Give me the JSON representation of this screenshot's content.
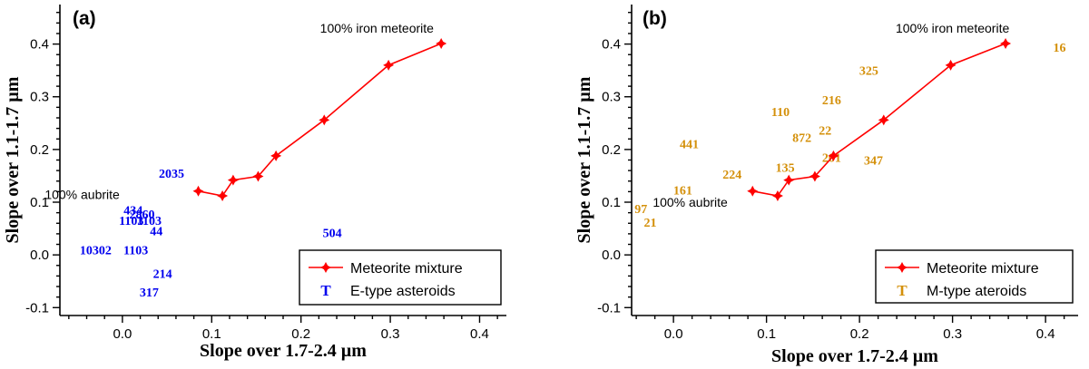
{
  "chart_data": [
    {
      "type": "scatter",
      "panel_label": "(a)",
      "xlabel": "Slope over 1.7-2.4 µm",
      "ylabel": "Slope over 1.1-1.7 µm",
      "xlim": [
        -0.07,
        0.43
      ],
      "ylim": [
        -0.115,
        0.475
      ],
      "xticks": [
        0.0,
        0.1,
        0.2,
        0.3,
        0.4
      ],
      "xtick_labels": [
        "0.0",
        "0.1",
        "0.2",
        "0.3",
        "0.4"
      ],
      "yticks": [
        -0.1,
        0.0,
        0.1,
        0.2,
        0.3,
        0.4
      ],
      "ytick_labels": [
        "-0.1",
        "0.0",
        "0.1",
        "0.2",
        "0.3",
        "0.4"
      ],
      "mixture": {
        "name": "Meteorite mixture",
        "color": "#ff0000",
        "x": [
          0.085,
          0.112,
          0.124,
          0.152,
          0.172,
          0.226,
          0.298,
          0.357
        ],
        "y": [
          0.121,
          0.112,
          0.142,
          0.149,
          0.188,
          0.256,
          0.36,
          0.401
        ]
      },
      "endmember_labels": [
        {
          "text": "100% iron meteorite",
          "x": 0.285,
          "y": 0.43
        },
        {
          "text": "100% aubrite",
          "x": -0.045,
          "y": 0.115
        }
      ],
      "asteroids": {
        "name": "E-type asteroids",
        "color": "#0000ee",
        "marker": "T",
        "points": [
          {
            "label": "2035",
            "x": 0.055,
            "y": 0.155
          },
          {
            "label": "434",
            "x": 0.012,
            "y": 0.085
          },
          {
            "label": "2860",
            "x": 0.022,
            "y": 0.078
          },
          {
            "label": "1103",
            "x": 0.03,
            "y": 0.066
          },
          {
            "label": "1103",
            "x": 0.01,
            "y": 0.066
          },
          {
            "label": "44",
            "x": 0.038,
            "y": 0.046
          },
          {
            "label": "10302",
            "x": -0.03,
            "y": 0.01
          },
          {
            "label": "1103",
            "x": 0.015,
            "y": 0.01
          },
          {
            "label": "504",
            "x": 0.235,
            "y": 0.042
          },
          {
            "label": "214",
            "x": 0.045,
            "y": -0.035
          },
          {
            "label": "317",
            "x": 0.03,
            "y": -0.07
          }
        ]
      },
      "legend": {
        "position": "bottom-right",
        "entries": [
          "Meteorite mixture",
          "E-type asteroids"
        ]
      }
    },
    {
      "type": "scatter",
      "panel_label": "(b)",
      "xlabel": "Slope over 1.7-2.4 µm",
      "ylabel": "Slope over 1.1-1.7 µm",
      "xlim": [
        -0.045,
        0.435
      ],
      "ylim": [
        -0.115,
        0.475
      ],
      "xticks": [
        0.0,
        0.1,
        0.2,
        0.3,
        0.4
      ],
      "xtick_labels": [
        "0.0",
        "0.1",
        "0.2",
        "0.3",
        "0.4"
      ],
      "yticks": [
        -0.1,
        0.0,
        0.1,
        0.2,
        0.3,
        0.4
      ],
      "ytick_labels": [
        "-0.1",
        "0.0",
        "0.1",
        "0.2",
        "0.3",
        "0.4"
      ],
      "mixture": {
        "name": "Meteorite mixture",
        "color": "#ff0000",
        "x": [
          0.085,
          0.112,
          0.124,
          0.152,
          0.172,
          0.226,
          0.298,
          0.357
        ],
        "y": [
          0.121,
          0.112,
          0.142,
          0.149,
          0.188,
          0.256,
          0.36,
          0.401
        ]
      },
      "endmember_labels": [
        {
          "text": "100% iron meteorite",
          "x": 0.3,
          "y": 0.43
        },
        {
          "text": "100% aubrite",
          "x": 0.018,
          "y": 0.1
        }
      ],
      "asteroids": {
        "name": "M-type ateroids",
        "color": "#d4900a",
        "marker": "T",
        "points": [
          {
            "label": "16",
            "x": 0.415,
            "y": 0.394
          },
          {
            "label": "325",
            "x": 0.21,
            "y": 0.35
          },
          {
            "label": "216",
            "x": 0.17,
            "y": 0.294
          },
          {
            "label": "110",
            "x": 0.115,
            "y": 0.272
          },
          {
            "label": "22",
            "x": 0.163,
            "y": 0.237
          },
          {
            "label": "872",
            "x": 0.138,
            "y": 0.223
          },
          {
            "label": "441",
            "x": 0.017,
            "y": 0.211
          },
          {
            "label": "201",
            "x": 0.17,
            "y": 0.185
          },
          {
            "label": "347",
            "x": 0.215,
            "y": 0.18
          },
          {
            "label": "224",
            "x": 0.063,
            "y": 0.153
          },
          {
            "label": "135",
            "x": 0.12,
            "y": 0.166
          },
          {
            "label": "161",
            "x": 0.01,
            "y": 0.123
          },
          {
            "label": "97",
            "x": -0.035,
            "y": 0.088
          },
          {
            "label": "21",
            "x": -0.025,
            "y": 0.062
          }
        ]
      },
      "legend": {
        "position": "bottom-right",
        "entries": [
          "Meteorite mixture",
          "M-type ateroids"
        ]
      }
    }
  ]
}
